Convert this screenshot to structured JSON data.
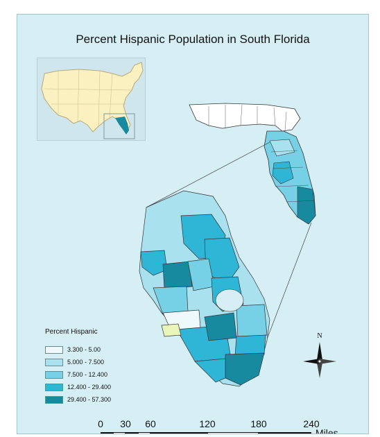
{
  "map": {
    "title": "Percent Hispanic Population in South Florida",
    "colors": {
      "water": "#d6eff4",
      "usa_land": "#fbf1c0",
      "florida_outline": "#ffffff",
      "class_1": "#eef9fb",
      "class_2": "#a9e1ee",
      "class_3": "#77d1e6",
      "class_4": "#2fb6d6",
      "class_5": "#188aa0",
      "highlight": "#e9f5b9"
    },
    "legend": {
      "title": "Percent Hispanic",
      "items": [
        {
          "label": "3.300 - 5.00",
          "color": "#eef9fb"
        },
        {
          "label": "5.000 - 7.500",
          "color": "#a9e1ee"
        },
        {
          "label": "7.500 - 12.400",
          "color": "#77d1e6"
        },
        {
          "label": "12.400 - 29.400",
          "color": "#2fb6d6"
        },
        {
          "label": "29.400 - 57.300",
          "color": "#188aa0"
        }
      ]
    },
    "north_arrow": {
      "label": "N"
    },
    "scale_bar": {
      "ticks": [
        "0",
        "30",
        "60",
        "120",
        "180",
        "240"
      ],
      "units": "Miles"
    }
  }
}
